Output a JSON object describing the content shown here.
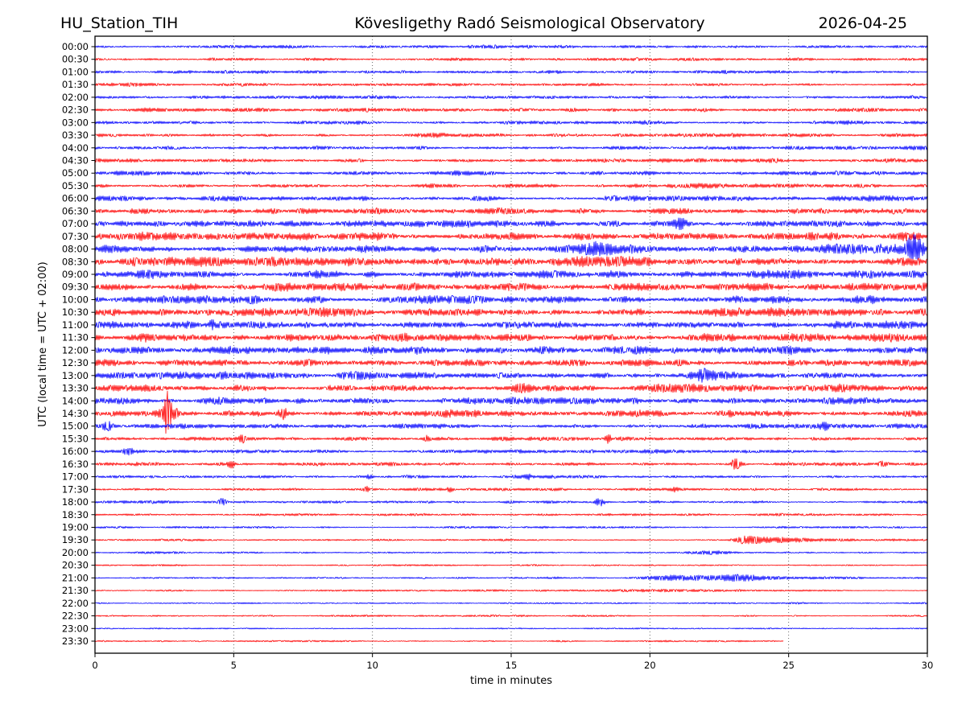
{
  "header": {
    "station": "HU_Station_TIH",
    "observatory": "Kövesligethy Radó Seismological Observatory",
    "date": "2026-04-25"
  },
  "chart_data": {
    "type": "line",
    "subtype": "helicorder-seismogram",
    "title": "Kövesligethy Radó Seismological Observatory",
    "station": "HU_Station_TIH",
    "date": "2026-04-25",
    "xlabel": "time in minutes",
    "ylabel": "UTC (local time = UTC + 02:00)",
    "xlim": [
      0,
      30
    ],
    "xticks": [
      0,
      5,
      10,
      15,
      20,
      25,
      30
    ],
    "grid": "vertical dotted lines at 5-minute intervals",
    "legend": "none",
    "minutes_per_row": 30,
    "colors": {
      "blue": "#0000ff",
      "red": "#ff0000",
      "grid": "#555555",
      "frame": "#000000"
    },
    "rows": [
      {
        "label": "00:00",
        "color": "blue",
        "amp": 1.6,
        "events": []
      },
      {
        "label": "00:30",
        "color": "red",
        "amp": 1.6,
        "events": []
      },
      {
        "label": "01:00",
        "color": "blue",
        "amp": 1.6,
        "events": []
      },
      {
        "label": "01:30",
        "color": "red",
        "amp": 1.7,
        "events": []
      },
      {
        "label": "02:00",
        "color": "blue",
        "amp": 1.7,
        "events": []
      },
      {
        "label": "02:30",
        "color": "red",
        "amp": 1.9,
        "events": []
      },
      {
        "label": "03:00",
        "color": "blue",
        "amp": 2.0,
        "events": []
      },
      {
        "label": "03:30",
        "color": "red",
        "amp": 2.1,
        "events": []
      },
      {
        "label": "04:00",
        "color": "blue",
        "amp": 2.1,
        "events": []
      },
      {
        "label": "04:30",
        "color": "red",
        "amp": 2.1,
        "events": []
      },
      {
        "label": "05:00",
        "color": "blue",
        "amp": 2.2,
        "events": []
      },
      {
        "label": "05:30",
        "color": "red",
        "amp": 2.3,
        "events": []
      },
      {
        "label": "06:00",
        "color": "blue",
        "amp": 2.6,
        "events": []
      },
      {
        "label": "06:30",
        "color": "red",
        "amp": 3.1,
        "events": []
      },
      {
        "label": "07:00",
        "color": "blue",
        "amp": 3.6,
        "events": [
          {
            "t": 21.1,
            "a": 6.5,
            "w": 0.18
          }
        ]
      },
      {
        "label": "07:30",
        "color": "red",
        "amp": 4.3,
        "events": []
      },
      {
        "label": "08:00",
        "color": "blue",
        "amp": 4.5,
        "events": [
          {
            "t": 18.1,
            "a": 7,
            "w": 0.5
          },
          {
            "t": 29.45,
            "a": 15,
            "w": 0.12
          },
          {
            "t": 29.7,
            "a": 7,
            "w": 0.1
          }
        ]
      },
      {
        "label": "08:30",
        "color": "red",
        "amp": 4.5,
        "events": []
      },
      {
        "label": "09:00",
        "color": "blue",
        "amp": 4.1,
        "events": []
      },
      {
        "label": "09:30",
        "color": "red",
        "amp": 4.1,
        "events": []
      },
      {
        "label": "10:00",
        "color": "blue",
        "amp": 3.9,
        "events": []
      },
      {
        "label": "10:30",
        "color": "red",
        "amp": 4.1,
        "events": []
      },
      {
        "label": "11:00",
        "color": "blue",
        "amp": 3.7,
        "events": [
          {
            "t": 4.2,
            "a": 5.5,
            "w": 0.08
          }
        ]
      },
      {
        "label": "11:30",
        "color": "red",
        "amp": 4.1,
        "events": []
      },
      {
        "label": "12:00",
        "color": "blue",
        "amp": 4.1,
        "events": []
      },
      {
        "label": "12:30",
        "color": "red",
        "amp": 3.9,
        "events": []
      },
      {
        "label": "13:00",
        "color": "blue",
        "amp": 3.7,
        "events": [
          {
            "t": 21.9,
            "a": 6,
            "w": 0.3
          }
        ]
      },
      {
        "label": "13:30",
        "color": "red",
        "amp": 3.7,
        "events": [
          {
            "t": 15.4,
            "a": 5,
            "w": 0.25
          }
        ]
      },
      {
        "label": "14:00",
        "color": "blue",
        "amp": 3.5,
        "events": []
      },
      {
        "label": "14:30",
        "color": "red",
        "amp": 3.5,
        "events": [
          {
            "t": 2.62,
            "a": 25,
            "w": 0.07
          },
          {
            "t": 2.62,
            "a": 8,
            "w": 0.25
          },
          {
            "t": 6.8,
            "a": 6.5,
            "w": 0.12
          }
        ]
      },
      {
        "label": "15:00",
        "color": "blue",
        "amp": 2.5,
        "events": [
          {
            "t": 0.45,
            "a": 4.5,
            "w": 0.15
          },
          {
            "t": 26.3,
            "a": 4,
            "w": 0.12
          }
        ]
      },
      {
        "label": "15:30",
        "color": "red",
        "amp": 1.9,
        "events": [
          {
            "t": 5.3,
            "a": 6,
            "w": 0.07
          },
          {
            "t": 12.0,
            "a": 3.5,
            "w": 0.08
          },
          {
            "t": 18.5,
            "a": 5,
            "w": 0.08
          }
        ]
      },
      {
        "label": "16:00",
        "color": "blue",
        "amp": 1.8,
        "events": [
          {
            "t": 1.2,
            "a": 4.5,
            "w": 0.12
          }
        ]
      },
      {
        "label": "16:30",
        "color": "red",
        "amp": 1.8,
        "events": [
          {
            "t": 4.9,
            "a": 6,
            "w": 0.08
          },
          {
            "t": 23.1,
            "a": 5.5,
            "w": 0.12
          },
          {
            "t": 28.4,
            "a": 3.5,
            "w": 0.12
          }
        ]
      },
      {
        "label": "17:00",
        "color": "blue",
        "amp": 1.5,
        "events": [
          {
            "t": 9.9,
            "a": 2.5,
            "w": 0.1
          },
          {
            "t": 15.6,
            "a": 3.5,
            "w": 0.08
          }
        ]
      },
      {
        "label": "17:30",
        "color": "red",
        "amp": 1.5,
        "events": [
          {
            "t": 9.8,
            "a": 3,
            "w": 0.08
          },
          {
            "t": 12.8,
            "a": 4,
            "w": 0.08
          },
          {
            "t": 20.9,
            "a": 2.5,
            "w": 0.1
          }
        ]
      },
      {
        "label": "18:00",
        "color": "blue",
        "amp": 1.4,
        "events": [
          {
            "t": 4.6,
            "a": 5,
            "w": 0.1
          },
          {
            "t": 18.2,
            "a": 4.5,
            "w": 0.12
          }
        ]
      },
      {
        "label": "18:30",
        "color": "red",
        "amp": 1.3,
        "events": []
      },
      {
        "label": "19:00",
        "color": "blue",
        "amp": 1.1,
        "events": []
      },
      {
        "label": "19:30",
        "color": "red",
        "amp": 1.0,
        "events": [
          {
            "t": 23.5,
            "a": 4.5,
            "w": 0.35,
            "tail": true
          }
        ]
      },
      {
        "label": "20:00",
        "color": "blue",
        "amp": 1.0,
        "events": [
          {
            "t": 22.2,
            "a": 1.8,
            "w": 0.5
          }
        ]
      },
      {
        "label": "20:30",
        "color": "red",
        "amp": 0.9,
        "events": []
      },
      {
        "label": "21:00",
        "color": "blue",
        "amp": 1.0,
        "events": [
          {
            "t": 20.8,
            "a": 2.8,
            "w": 0.7,
            "tail": true
          },
          {
            "t": 23.4,
            "a": 1.8,
            "w": 0.8
          }
        ]
      },
      {
        "label": "21:30",
        "color": "red",
        "amp": 0.9,
        "events": [
          {
            "t": 20,
            "a": 1,
            "w": 2.5
          }
        ]
      },
      {
        "label": "22:00",
        "color": "blue",
        "amp": 0.9,
        "events": []
      },
      {
        "label": "22:30",
        "color": "red",
        "amp": 0.9,
        "events": []
      },
      {
        "label": "23:00",
        "color": "blue",
        "amp": 0.7,
        "events": []
      },
      {
        "label": "23:30",
        "color": "red",
        "amp": 0.9,
        "end": 24.8,
        "events": []
      }
    ]
  }
}
